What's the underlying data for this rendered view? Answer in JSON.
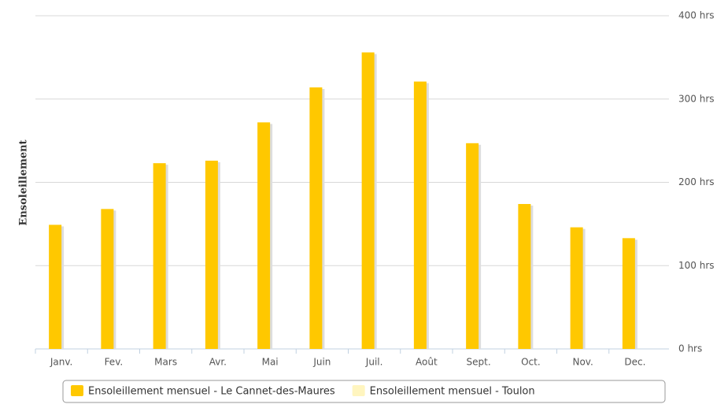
{
  "chart_data": {
    "type": "bar",
    "y_axis_label": "Ensoleillement",
    "categories": [
      "Janv.",
      "Fev.",
      "Mars",
      "Avr.",
      "Mai",
      "Juin",
      "Juil.",
      "Août",
      "Sept.",
      "Oct.",
      "Nov.",
      "Dec."
    ],
    "series": [
      {
        "name": "Ensoleillement mensuel - Le Cannet-des-Maures",
        "color": "#ffc800",
        "values": [
          149,
          168,
          223,
          226,
          272,
          314,
          356,
          321,
          247,
          174,
          146,
          133
        ]
      },
      {
        "name": "Ensoleillement mensuel - Toulon",
        "color": "#fff5bf",
        "values": [
          null,
          null,
          null,
          null,
          null,
          null,
          null,
          null,
          null,
          null,
          null,
          null
        ]
      }
    ],
    "ylim": [
      0,
      400
    ],
    "yticks": [
      {
        "value": 0,
        "label": "0 hrs"
      },
      {
        "value": 100,
        "label": "100 hrs"
      },
      {
        "value": 200,
        "label": "200 hrs"
      },
      {
        "value": 300,
        "label": "300 hrs"
      },
      {
        "value": 400,
        "label": "400 hrs"
      }
    ],
    "grid": true,
    "legend": "bottom"
  }
}
